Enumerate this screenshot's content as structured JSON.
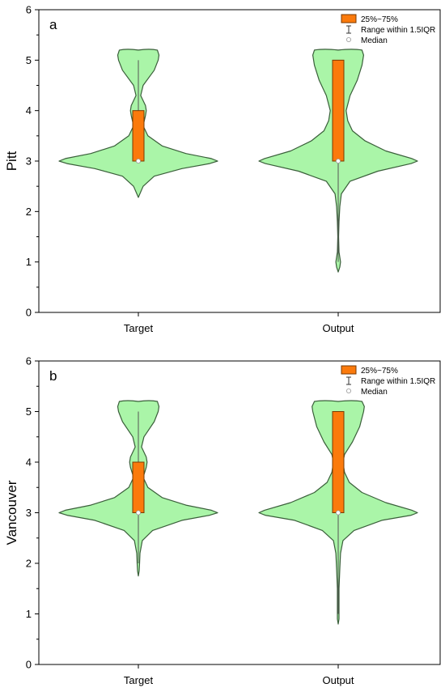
{
  "chart_data": [
    {
      "type": "violin",
      "panel_label": "a",
      "ylabel": "Pitt",
      "ylim": [
        0,
        6
      ],
      "yticks": [
        "0",
        "1",
        "2",
        "3",
        "4",
        "5",
        "6"
      ],
      "categories": [
        "Target",
        "Output"
      ],
      "violins": [
        {
          "category": "Target",
          "q1": 3,
          "q3": 4,
          "median": 3,
          "whisker_low": 3,
          "whisker_high": 5,
          "density_profile": [
            [
              2.28,
              0.0
            ],
            [
              2.5,
              0.06
            ],
            [
              2.7,
              0.2
            ],
            [
              2.85,
              0.55
            ],
            [
              2.95,
              0.9
            ],
            [
              3.0,
              1.0
            ],
            [
              3.05,
              0.92
            ],
            [
              3.15,
              0.6
            ],
            [
              3.3,
              0.3
            ],
            [
              3.5,
              0.12
            ],
            [
              3.7,
              0.06
            ],
            [
              3.9,
              0.09
            ],
            [
              4.0,
              0.1
            ],
            [
              4.1,
              0.09
            ],
            [
              4.3,
              0.03
            ],
            [
              4.5,
              0.06
            ],
            [
              4.8,
              0.2
            ],
            [
              5.0,
              0.25
            ],
            [
              5.1,
              0.26
            ],
            [
              5.2,
              0.24
            ]
          ]
        },
        {
          "category": "Output",
          "q1": 3,
          "q3": 5,
          "median": 3,
          "whisker_low": 1,
          "whisker_high": 5,
          "density_profile": [
            [
              0.8,
              0.0
            ],
            [
              0.9,
              0.02
            ],
            [
              1.0,
              0.03
            ],
            [
              1.2,
              0.01
            ],
            [
              1.5,
              0.005
            ],
            [
              1.8,
              0.01
            ],
            [
              2.1,
              0.02
            ],
            [
              2.35,
              0.04
            ],
            [
              2.6,
              0.15
            ],
            [
              2.8,
              0.5
            ],
            [
              2.95,
              0.92
            ],
            [
              3.0,
              1.0
            ],
            [
              3.05,
              0.93
            ],
            [
              3.2,
              0.6
            ],
            [
              3.4,
              0.34
            ],
            [
              3.6,
              0.18
            ],
            [
              3.8,
              0.12
            ],
            [
              4.0,
              0.1
            ],
            [
              4.3,
              0.15
            ],
            [
              4.6,
              0.24
            ],
            [
              4.9,
              0.3
            ],
            [
              5.1,
              0.32
            ],
            [
              5.2,
              0.3
            ]
          ]
        }
      ],
      "legend": {
        "position": "top-right",
        "entries": [
          "25%~75%",
          "Range within 1.5IQR",
          "Median"
        ]
      },
      "colors": {
        "violin_fill": "#aaf5a8",
        "violin_stroke": "#3a5f3a",
        "box_fill": "#fb7a0c",
        "box_stroke": "#7a3a00",
        "whisker": "#555555"
      }
    },
    {
      "type": "violin",
      "panel_label": "b",
      "ylabel": "Vancouver",
      "ylim": [
        0,
        6
      ],
      "yticks": [
        "0",
        "1",
        "2",
        "3",
        "4",
        "5",
        "6"
      ],
      "categories": [
        "Target",
        "Output"
      ],
      "violins": [
        {
          "category": "Target",
          "q1": 3,
          "q3": 4,
          "median": 3,
          "whisker_low": 2,
          "whisker_high": 5,
          "density_profile": [
            [
              1.75,
              0.0
            ],
            [
              1.85,
              0.01
            ],
            [
              2.0,
              0.015
            ],
            [
              2.2,
              0.02
            ],
            [
              2.45,
              0.05
            ],
            [
              2.65,
              0.18
            ],
            [
              2.85,
              0.55
            ],
            [
              2.95,
              0.9
            ],
            [
              3.0,
              1.0
            ],
            [
              3.05,
              0.92
            ],
            [
              3.15,
              0.6
            ],
            [
              3.3,
              0.3
            ],
            [
              3.5,
              0.12
            ],
            [
              3.7,
              0.06
            ],
            [
              3.9,
              0.1
            ],
            [
              4.0,
              0.11
            ],
            [
              4.1,
              0.1
            ],
            [
              4.3,
              0.04
            ],
            [
              4.5,
              0.07
            ],
            [
              4.8,
              0.2
            ],
            [
              5.0,
              0.25
            ],
            [
              5.1,
              0.26
            ],
            [
              5.2,
              0.24
            ]
          ]
        },
        {
          "category": "Output",
          "q1": 3,
          "q3": 5,
          "median": 3,
          "whisker_low": 1,
          "whisker_high": 5,
          "density_profile": [
            [
              0.8,
              0.0
            ],
            [
              0.9,
              0.01
            ],
            [
              1.1,
              0.01
            ],
            [
              1.5,
              0.01
            ],
            [
              1.9,
              0.02
            ],
            [
              2.2,
              0.03
            ],
            [
              2.45,
              0.06
            ],
            [
              2.65,
              0.2
            ],
            [
              2.85,
              0.55
            ],
            [
              2.95,
              0.92
            ],
            [
              3.0,
              1.0
            ],
            [
              3.05,
              0.93
            ],
            [
              3.2,
              0.6
            ],
            [
              3.4,
              0.3
            ],
            [
              3.6,
              0.14
            ],
            [
              3.8,
              0.08
            ],
            [
              4.0,
              0.06
            ],
            [
              4.15,
              0.08
            ],
            [
              4.4,
              0.18
            ],
            [
              4.7,
              0.27
            ],
            [
              5.0,
              0.32
            ],
            [
              5.1,
              0.33
            ],
            [
              5.2,
              0.3
            ]
          ]
        }
      ],
      "legend": {
        "position": "top-right",
        "entries": [
          "25%~75%",
          "Range within 1.5IQR",
          "Median"
        ]
      },
      "colors": {
        "violin_fill": "#aaf5a8",
        "violin_stroke": "#3a5f3a",
        "box_fill": "#fb7a0c",
        "box_stroke": "#7a3a00",
        "whisker": "#555555"
      }
    }
  ]
}
